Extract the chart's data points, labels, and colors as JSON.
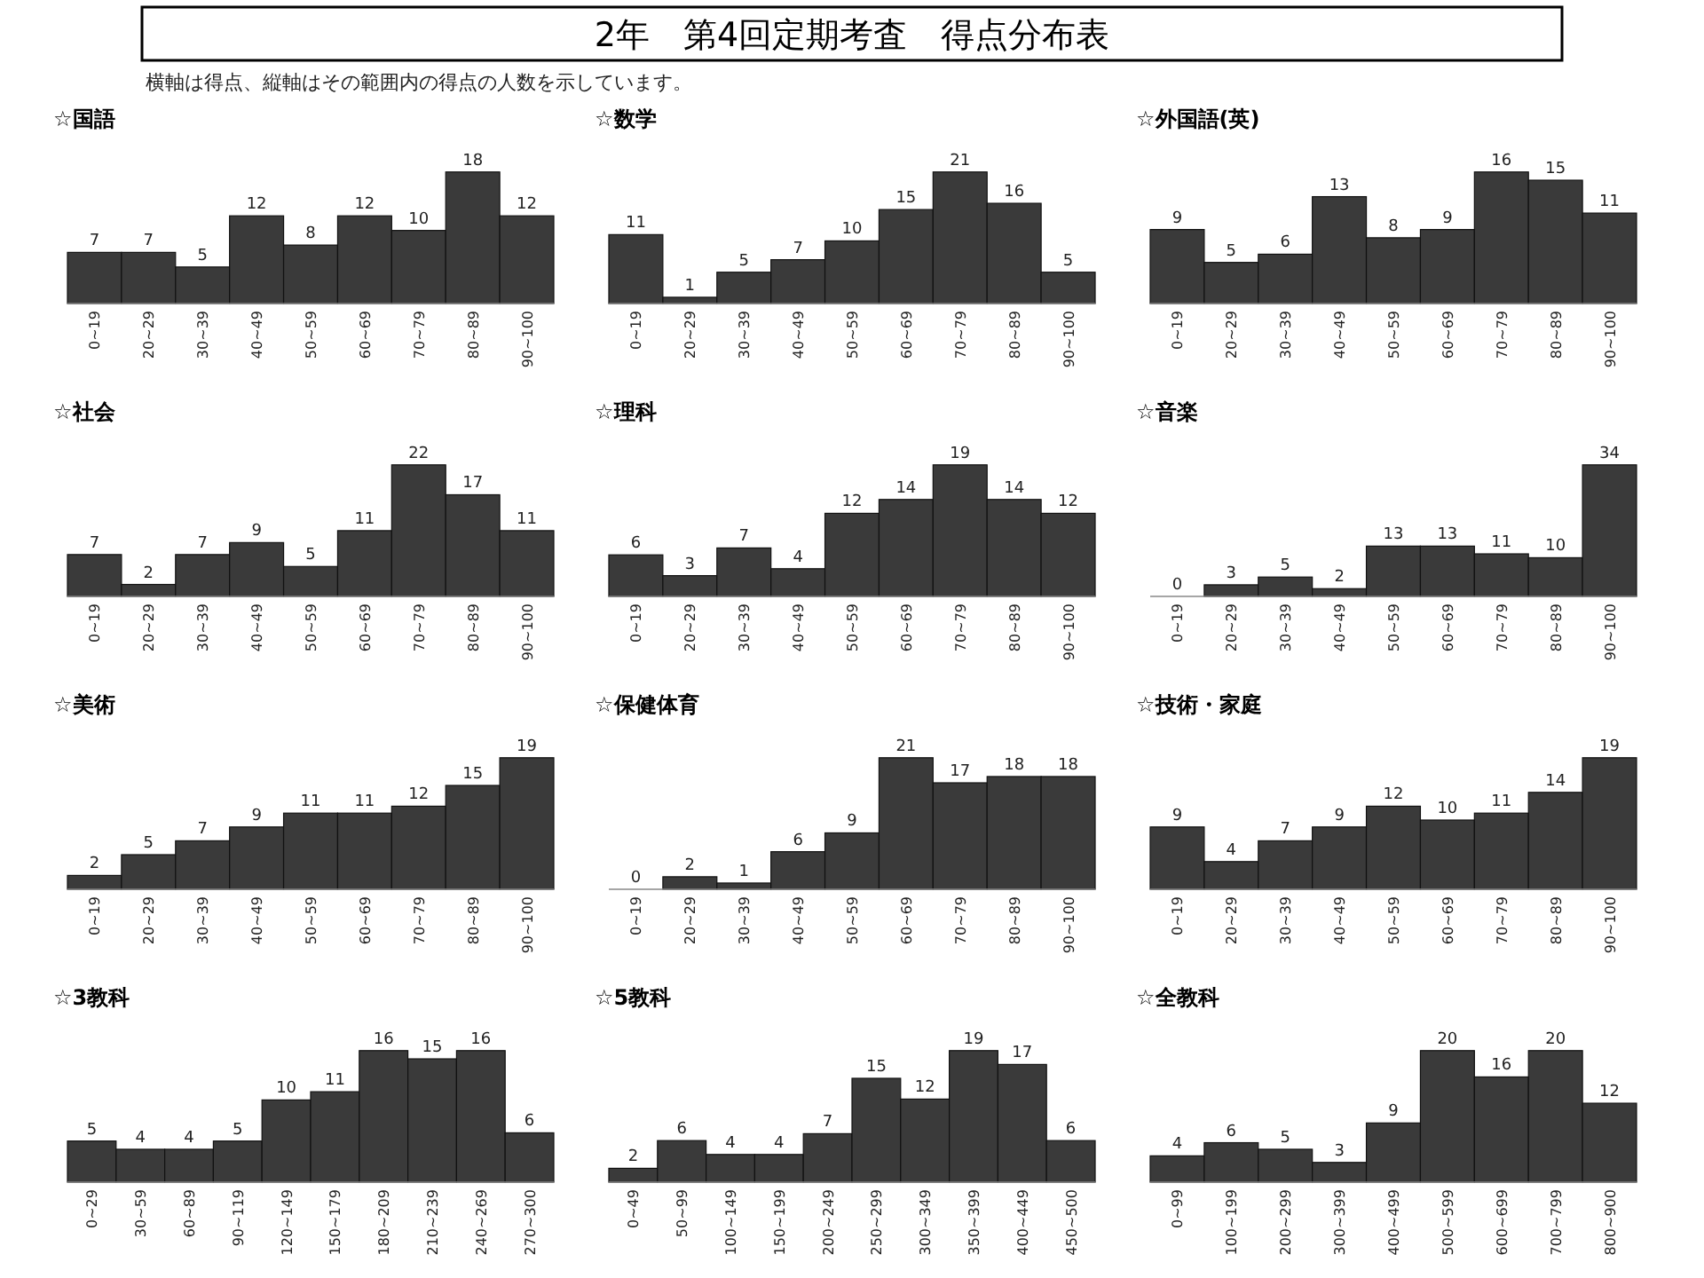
{
  "chart_data": [
    {
      "type": "other",
      "title": "2年　第4回定期考査　得点分布表",
      "subtitle": "横軸は得点、縦軸はその範囲内の得点の人数を示しています。"
    },
    {
      "type": "bar",
      "title": "☆国語",
      "categories": [
        "0~19",
        "20~29",
        "30~39",
        "40~49",
        "50~59",
        "60~69",
        "70~79",
        "80~89",
        "90~100"
      ],
      "values": [
        7,
        7,
        5,
        12,
        8,
        12,
        10,
        18,
        12
      ],
      "color": "#3a3a3a",
      "data_labels": true,
      "tick_labels": "x"
    },
    {
      "type": "bar",
      "title": "☆数学",
      "categories": [
        "0~19",
        "20~29",
        "30~39",
        "40~49",
        "50~59",
        "60~69",
        "70~79",
        "80~89",
        "90~100"
      ],
      "values": [
        11,
        1,
        5,
        7,
        10,
        15,
        21,
        16,
        5
      ],
      "color": "#3a3a3a",
      "data_labels": true,
      "tick_labels": "x"
    },
    {
      "type": "bar",
      "title": "☆外国語(英)",
      "categories": [
        "0~19",
        "20~29",
        "30~39",
        "40~49",
        "50~59",
        "60~69",
        "70~79",
        "80~89",
        "90~100"
      ],
      "values": [
        9,
        5,
        6,
        13,
        8,
        9,
        16,
        15,
        11
      ],
      "color": "#3a3a3a",
      "data_labels": true,
      "tick_labels": "x"
    },
    {
      "type": "bar",
      "title": "☆社会",
      "categories": [
        "0~19",
        "20~29",
        "30~39",
        "40~49",
        "50~59",
        "60~69",
        "70~79",
        "80~89",
        "90~100"
      ],
      "values": [
        7,
        2,
        7,
        9,
        5,
        11,
        22,
        17,
        11
      ],
      "color": "#3a3a3a",
      "data_labels": true,
      "tick_labels": "x"
    },
    {
      "type": "bar",
      "title": "☆理科",
      "categories": [
        "0~19",
        "20~29",
        "30~39",
        "40~49",
        "50~59",
        "60~69",
        "70~79",
        "80~89",
        "90~100"
      ],
      "values": [
        6,
        3,
        7,
        4,
        12,
        14,
        19,
        14,
        12
      ],
      "color": "#3a3a3a",
      "data_labels": true,
      "tick_labels": "x"
    },
    {
      "type": "bar",
      "title": "☆音楽",
      "categories": [
        "0~19",
        "20~29",
        "30~39",
        "40~49",
        "50~59",
        "60~69",
        "70~79",
        "80~89",
        "90~100"
      ],
      "values": [
        0,
        3,
        5,
        2,
        13,
        13,
        11,
        10,
        34
      ],
      "color": "#3a3a3a",
      "data_labels": true,
      "tick_labels": "x"
    },
    {
      "type": "bar",
      "title": "☆美術",
      "categories": [
        "0~19",
        "20~29",
        "30~39",
        "40~49",
        "50~59",
        "60~69",
        "70~79",
        "80~89",
        "90~100"
      ],
      "values": [
        2,
        5,
        7,
        9,
        11,
        11,
        12,
        15,
        19
      ],
      "color": "#3a3a3a",
      "data_labels": true,
      "tick_labels": "x"
    },
    {
      "type": "bar",
      "title": "☆保健体育",
      "categories": [
        "0~19",
        "20~29",
        "30~39",
        "40~49",
        "50~59",
        "60~69",
        "70~79",
        "80~89",
        "90~100"
      ],
      "values": [
        0,
        2,
        1,
        6,
        9,
        21,
        17,
        18,
        18
      ],
      "color": "#3a3a3a",
      "data_labels": true,
      "tick_labels": "x"
    },
    {
      "type": "bar",
      "title": "☆技術・家庭",
      "categories": [
        "0~19",
        "20~29",
        "30~39",
        "40~49",
        "50~59",
        "60~69",
        "70~79",
        "80~89",
        "90~100"
      ],
      "values": [
        9,
        4,
        7,
        9,
        12,
        10,
        11,
        14,
        19
      ],
      "color": "#3a3a3a",
      "data_labels": true,
      "tick_labels": "x"
    },
    {
      "type": "bar",
      "title": "☆3教科",
      "categories": [
        "0~29",
        "30~59",
        "60~89",
        "90~119",
        "120~149",
        "150~179",
        "180~209",
        "210~239",
        "240~269",
        "270~300"
      ],
      "values": [
        5,
        4,
        4,
        5,
        10,
        11,
        16,
        15,
        16,
        6
      ],
      "color": "#3a3a3a",
      "data_labels": true,
      "tick_labels": "x"
    },
    {
      "type": "bar",
      "title": "☆5教科",
      "categories": [
        "0~49",
        "50~99",
        "100~149",
        "150~199",
        "200~249",
        "250~299",
        "300~349",
        "350~399",
        "400~449",
        "450~500"
      ],
      "values": [
        2,
        6,
        4,
        4,
        7,
        15,
        12,
        19,
        17,
        6
      ],
      "color": "#3a3a3a",
      "data_labels": true,
      "tick_labels": "x"
    },
    {
      "type": "bar",
      "title": "☆全教科",
      "categories": [
        "0~99",
        "100~199",
        "200~299",
        "300~399",
        "400~499",
        "500~599",
        "600~699",
        "700~799",
        "800~900"
      ],
      "values": [
        4,
        6,
        5,
        3,
        9,
        20,
        16,
        20,
        12
      ],
      "color": "#3a3a3a",
      "data_labels": true,
      "tick_labels": "x"
    }
  ]
}
